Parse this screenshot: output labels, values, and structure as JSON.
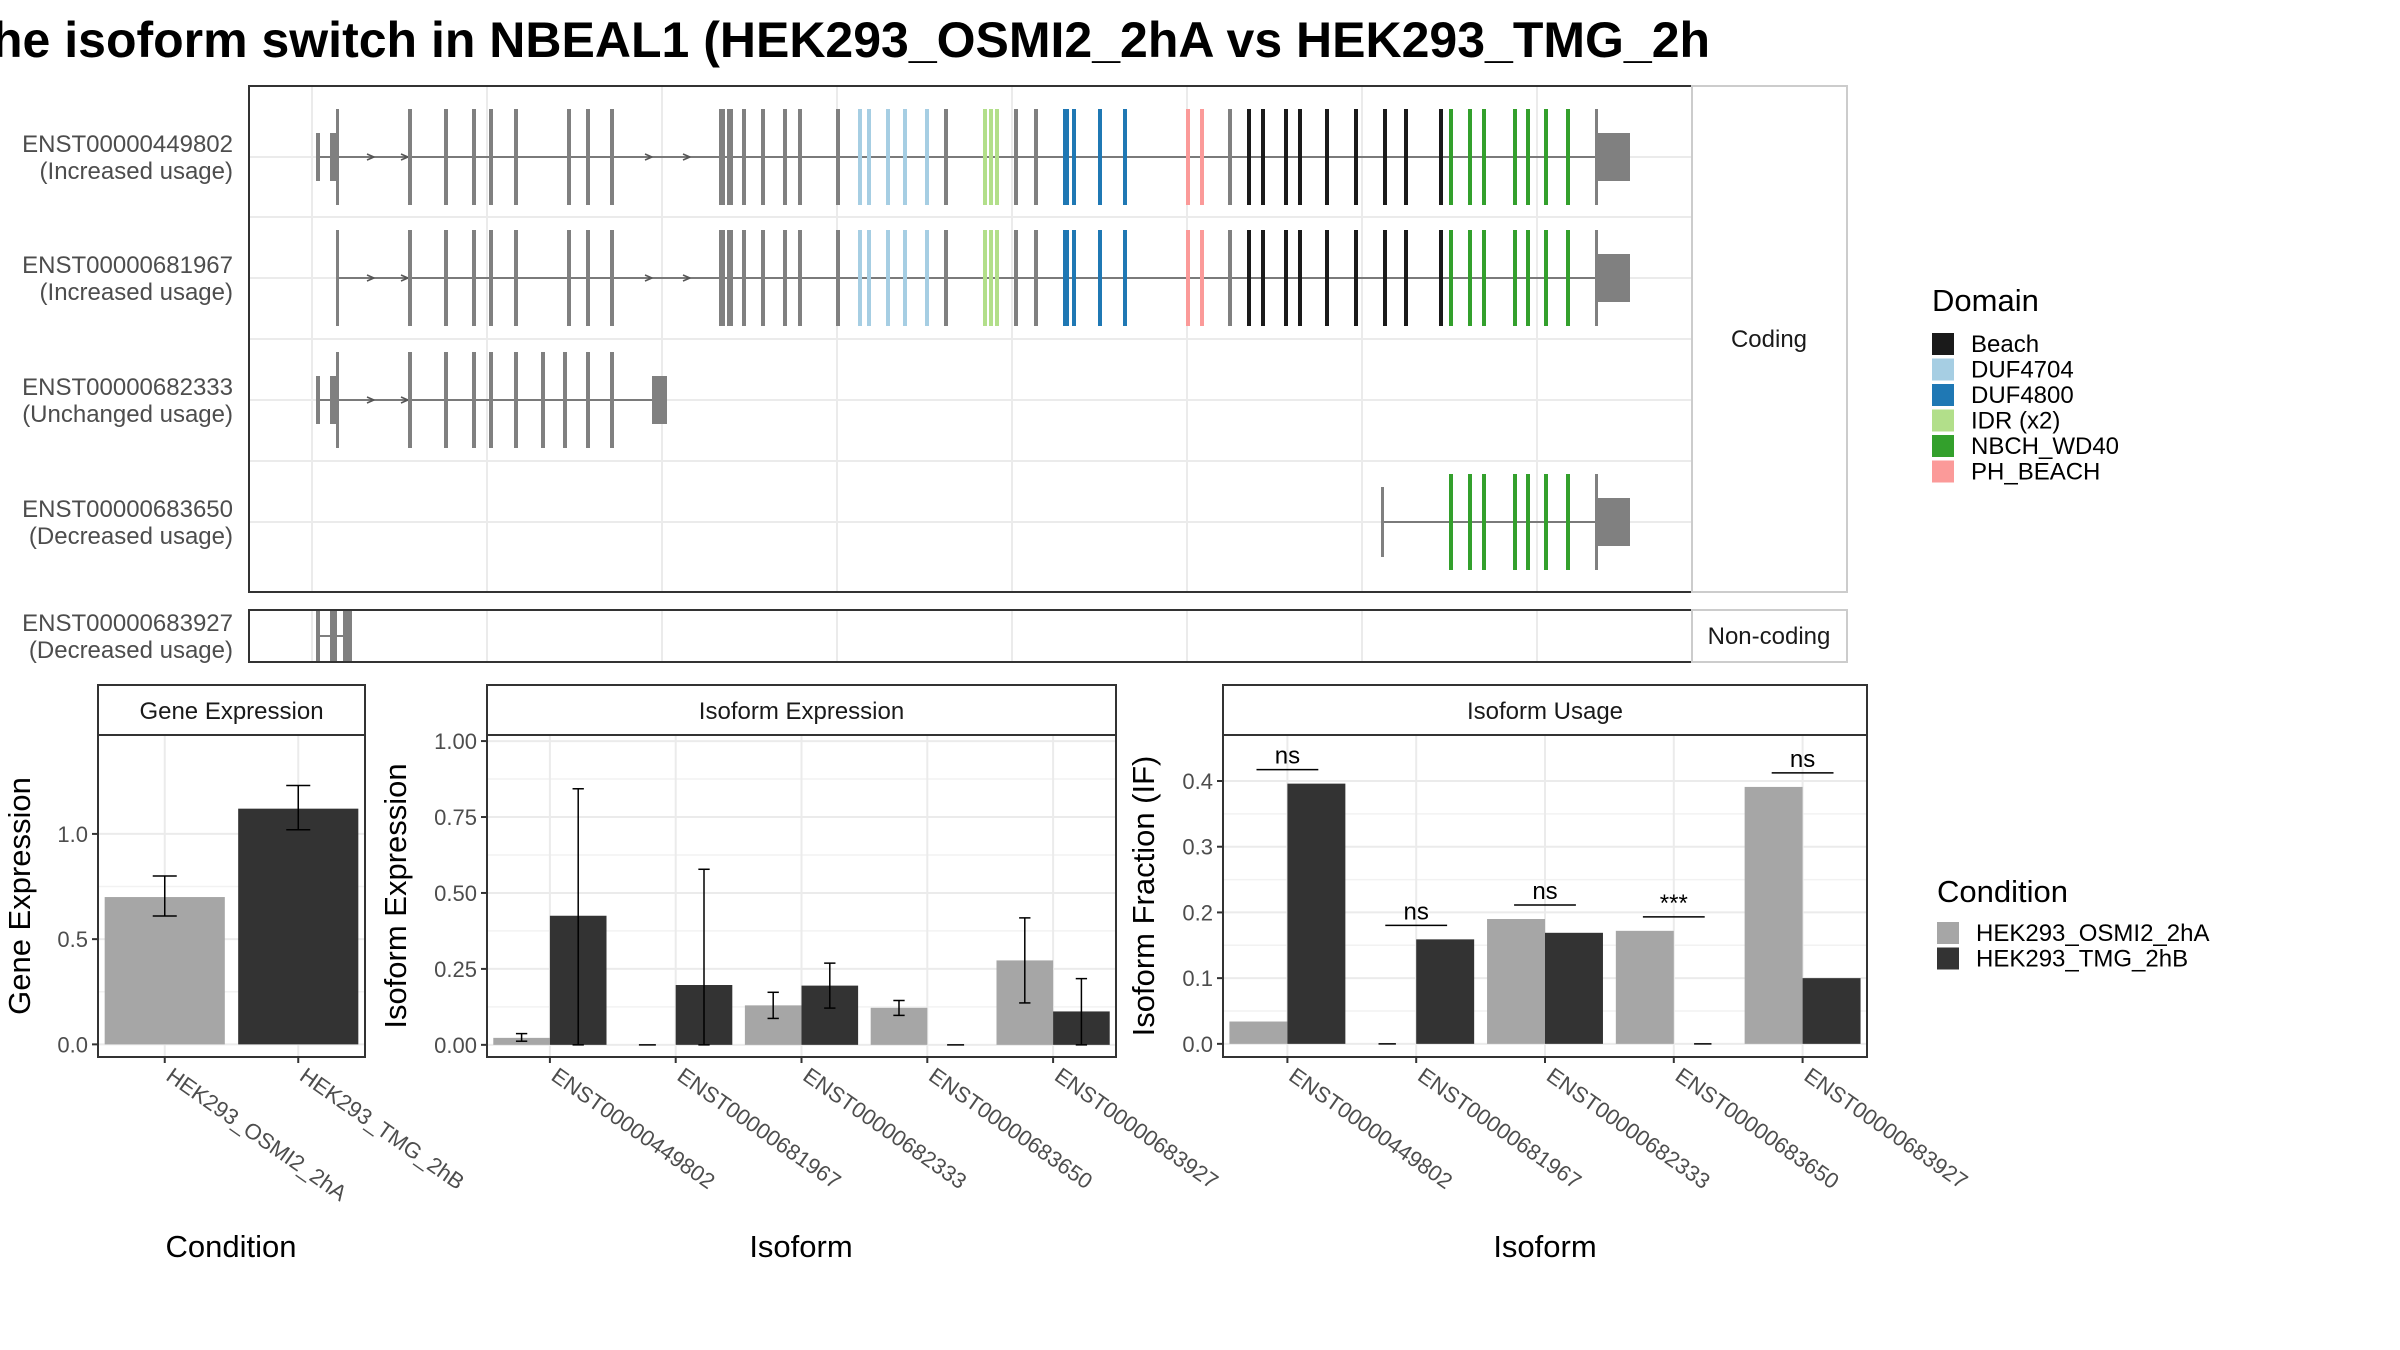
{
  "title": "he isoform switch in NBEAL1 (HEK293_OSMI2_2hA vs HEK293_TMG_2h",
  "colors": {
    "gray_exon": "#808080",
    "cond_a": "#a6a6a6",
    "cond_b": "#333333",
    "beach": "#1a1a1a",
    "duf4704": "#a6cee3",
    "duf4800": "#1f78b4",
    "idr": "#b2df8a",
    "nbch_wd40": "#33a02c",
    "ph_beach": "#fb9a99"
  },
  "structure": {
    "facet_coding": "Coding",
    "facet_noncoding": "Non-coding",
    "isoforms": [
      {
        "id": "ENST00000449802",
        "label": "(Increased usage)"
      },
      {
        "id": "ENST00000681967",
        "label": "(Increased usage)"
      },
      {
        "id": "ENST00000682333",
        "label": "(Unchanged usage)"
      },
      {
        "id": "ENST00000683650",
        "label": "(Decreased usage)"
      },
      {
        "id": "ENST00000683927",
        "label": "(Decreased usage)"
      }
    ]
  },
  "legend_domain": {
    "title": "Domain",
    "items": [
      {
        "label": "Beach",
        "color": "#1a1a1a"
      },
      {
        "label": "DUF4704",
        "color": "#a6cee3"
      },
      {
        "label": "DUF4800",
        "color": "#1f78b4"
      },
      {
        "label": "IDR (x2)",
        "color": "#b2df8a"
      },
      {
        "label": "NBCH_WD40",
        "color": "#33a02c"
      },
      {
        "label": "PH_BEACH",
        "color": "#fb9a99"
      }
    ]
  },
  "legend_condition": {
    "title": "Condition",
    "items": [
      {
        "label": "HEK293_OSMI2_2hA",
        "color": "#a6a6a6"
      },
      {
        "label": "HEK293_TMG_2hB",
        "color": "#333333"
      }
    ]
  },
  "chart_data": [
    {
      "type": "bar",
      "title": "Gene Expression",
      "xlabel": "Condition",
      "ylabel": "Gene Expression",
      "categories": [
        "HEK293_OSMI2_2hA",
        "HEK293_TMG_2hB"
      ],
      "values": [
        0.7,
        1.12
      ],
      "error_low": [
        0.61,
        1.02
      ],
      "error_high": [
        0.8,
        1.23
      ],
      "ylim": [
        -0.06,
        1.47
      ],
      "yticks": [
        0.0,
        0.5,
        1.0
      ],
      "ytick_labels": [
        "0.0",
        "0.5",
        "1.0"
      ]
    },
    {
      "type": "bar",
      "title": "Isoform Expression",
      "xlabel": "Isoform",
      "ylabel": "Isoform Expression",
      "categories": [
        "ENST00000449802",
        "ENST00000681967",
        "ENST00000682333",
        "ENST00000683650",
        "ENST00000683927"
      ],
      "series": [
        {
          "name": "HEK293_OSMI2_2hA",
          "values": [
            0.023,
            0.0,
            0.13,
            0.122,
            0.278
          ],
          "error_low": [
            0.012,
            0.0,
            0.087,
            0.097,
            0.138
          ],
          "error_high": [
            0.037,
            0.0,
            0.173,
            0.146,
            0.418
          ]
        },
        {
          "name": "HEK293_TMG_2hB",
          "values": [
            0.425,
            0.197,
            0.195,
            0.0,
            0.11
          ],
          "error_low": [
            0.0,
            0.0,
            0.121,
            0.0,
            0.0
          ],
          "error_high": [
            0.843,
            0.578,
            0.269,
            0.0,
            0.218
          ]
        }
      ],
      "ylim": [
        -0.04,
        1.02
      ],
      "yticks": [
        0.0,
        0.25,
        0.5,
        0.75,
        1.0
      ],
      "ytick_labels": [
        "0.00",
        "0.25",
        "0.50",
        "0.75",
        "1.00"
      ]
    },
    {
      "type": "bar",
      "title": "Isoform Usage",
      "xlabel": "Isoform",
      "ylabel": "Isoform Fraction (IF)",
      "categories": [
        "ENST00000449802",
        "ENST00000681967",
        "ENST00000682333",
        "ENST00000683650",
        "ENST00000683927"
      ],
      "series": [
        {
          "name": "HEK293_OSMI2_2hA",
          "values": [
            0.034,
            0.0,
            0.19,
            0.172,
            0.391
          ]
        },
        {
          "name": "HEK293_TMG_2hB",
          "values": [
            0.396,
            0.159,
            0.169,
            0.0,
            0.1
          ]
        }
      ],
      "significance": [
        "ns",
        "ns",
        "ns",
        "***",
        "ns"
      ],
      "ylim": [
        -0.02,
        0.47
      ],
      "yticks": [
        0.0,
        0.1,
        0.2,
        0.3,
        0.4
      ],
      "ytick_labels": [
        "0.0",
        "0.1",
        "0.2",
        "0.3",
        "0.4"
      ]
    }
  ]
}
